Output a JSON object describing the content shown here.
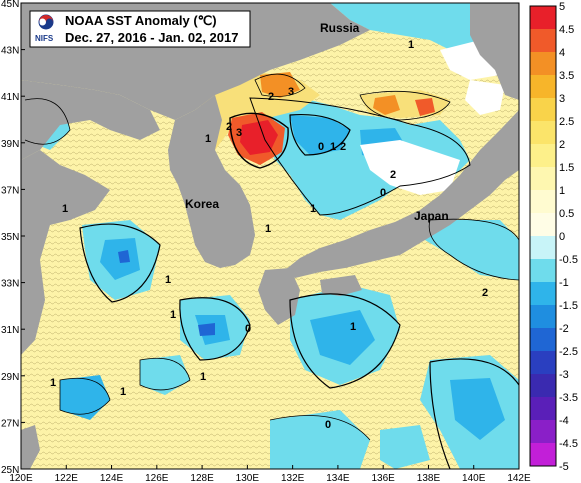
{
  "title": {
    "main": "NOAA SST Anomaly (℃)",
    "period": "Dec. 27, 2016 - Jan. 02, 2017",
    "brand": "NIFS"
  },
  "regions": {
    "russia": "Russia",
    "korea": "Korea",
    "japan": "Japan"
  },
  "axes": {
    "lat_labels": [
      "45N",
      "43N",
      "41N",
      "39N",
      "37N",
      "35N",
      "33N",
      "31N",
      "29N",
      "27N",
      "25N"
    ],
    "lon_labels": [
      "120E",
      "122E",
      "124E",
      "126E",
      "128E",
      "130E",
      "132E",
      "134E",
      "136E",
      "138E",
      "140E",
      "142E"
    ]
  },
  "colorbar": {
    "labels": [
      "5",
      "4.5",
      "4",
      "3.5",
      "3",
      "2.5",
      "2",
      "1.5",
      "1",
      "0.5",
      "0",
      "-0.5",
      "-1",
      "-1.5",
      "-2",
      "-2.5",
      "-3",
      "-3.5",
      "-4",
      "-4.5",
      "-5"
    ],
    "colors": [
      "#e8202a",
      "#f05a2a",
      "#f39025",
      "#f7b52a",
      "#f9d34a",
      "#fbe46a",
      "#fdf08a",
      "#fef7b0",
      "#fffbd0",
      "#fffde6",
      "#c8f4f8",
      "#6fdcec",
      "#2fb4ea",
      "#1f8ee0",
      "#1f66d4",
      "#2a3fc0",
      "#3a2ab0",
      "#5a1fb8",
      "#8a1fc8",
      "#c21fd8"
    ]
  },
  "contour_labels": [
    "3",
    "2",
    "3",
    "2",
    "1",
    "0",
    "1",
    "2",
    "1",
    "1",
    "0",
    "1",
    "2",
    "1",
    "1",
    "0",
    "1",
    "2",
    "1",
    "0",
    "1",
    "1",
    "1"
  ],
  "map_colors": {
    "land": "#a0a0a0",
    "warm": "#fdf3a8",
    "warm2": "#f8e07a",
    "hot": "#f05a2a",
    "hotter": "#e8202a",
    "cool": "#6fdcec",
    "cold": "#2fb4ea",
    "colder": "#1f66d4",
    "ice": "#ffffff"
  }
}
